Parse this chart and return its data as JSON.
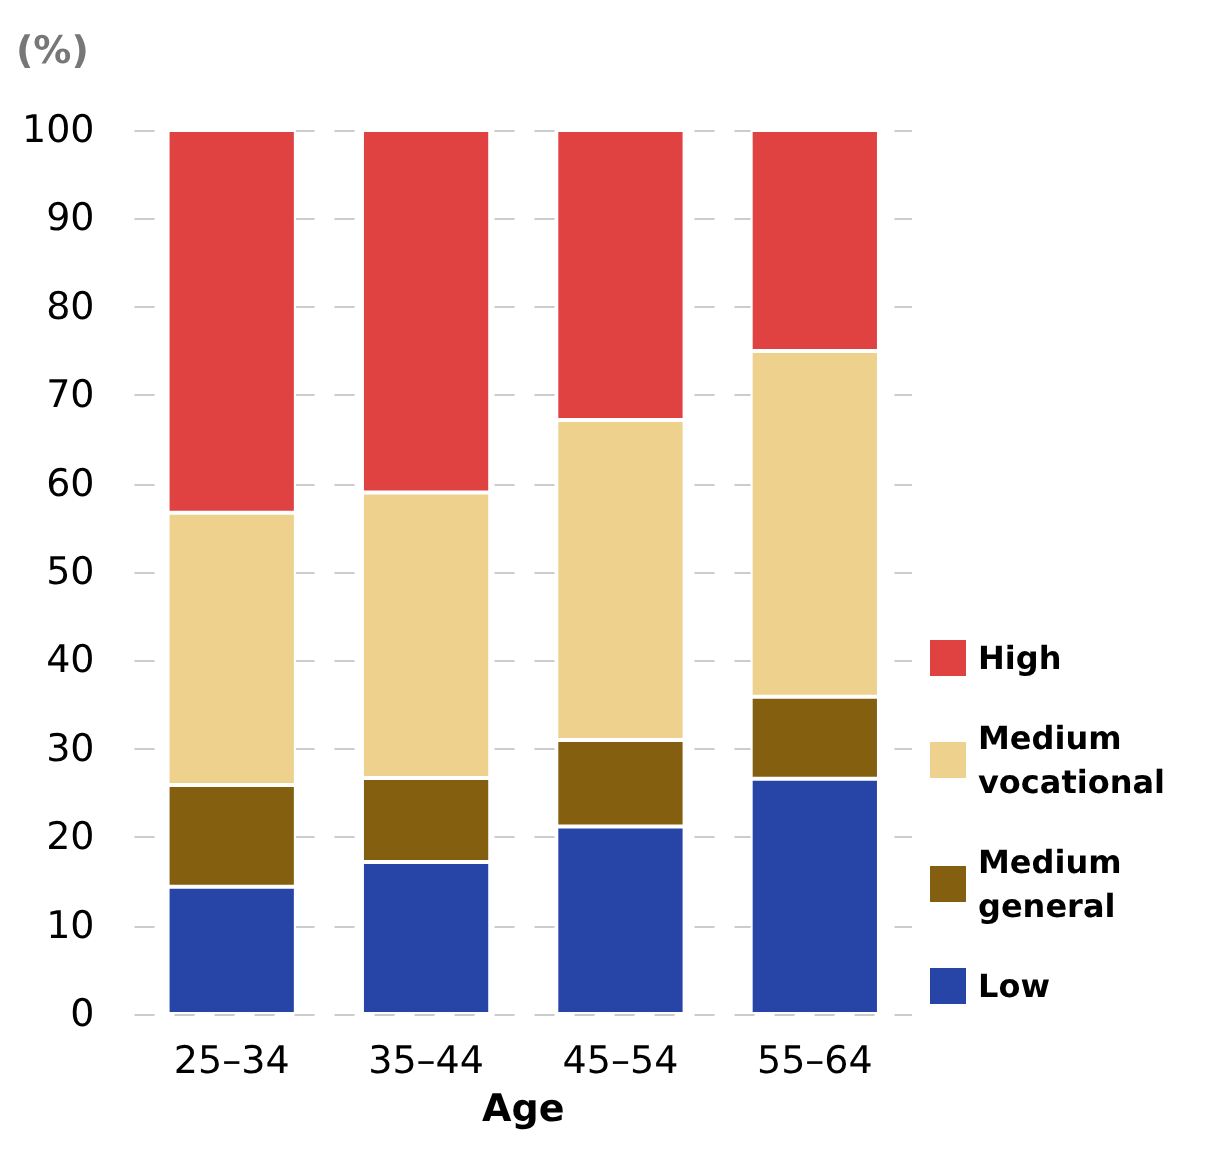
{
  "chart_data": {
    "type": "bar",
    "stacked": true,
    "ylabel": "(%)",
    "xlabel": "Age",
    "categories": [
      "25–34",
      "35–44",
      "45–54",
      "55–64"
    ],
    "series": [
      {
        "name": "Low",
        "color": "#2745a6",
        "values": [
          14.4,
          17.2,
          21.2,
          26.6
        ]
      },
      {
        "name": "Medium general",
        "color": "#855f10",
        "values": [
          11.5,
          9.5,
          9.8,
          9.3
        ]
      },
      {
        "name": "Medium vocational",
        "color": "#eed18c",
        "values": [
          30.8,
          32.3,
          36.2,
          39.1
        ]
      },
      {
        "name": "High",
        "color": "#e04242",
        "values": [
          43.3,
          41.0,
          32.8,
          25.0
        ]
      }
    ],
    "ylim": [
      0,
      100
    ],
    "yticks": [
      0,
      10,
      20,
      30,
      40,
      50,
      60,
      70,
      80,
      90,
      100
    ],
    "grid": "y",
    "legend": "right"
  }
}
